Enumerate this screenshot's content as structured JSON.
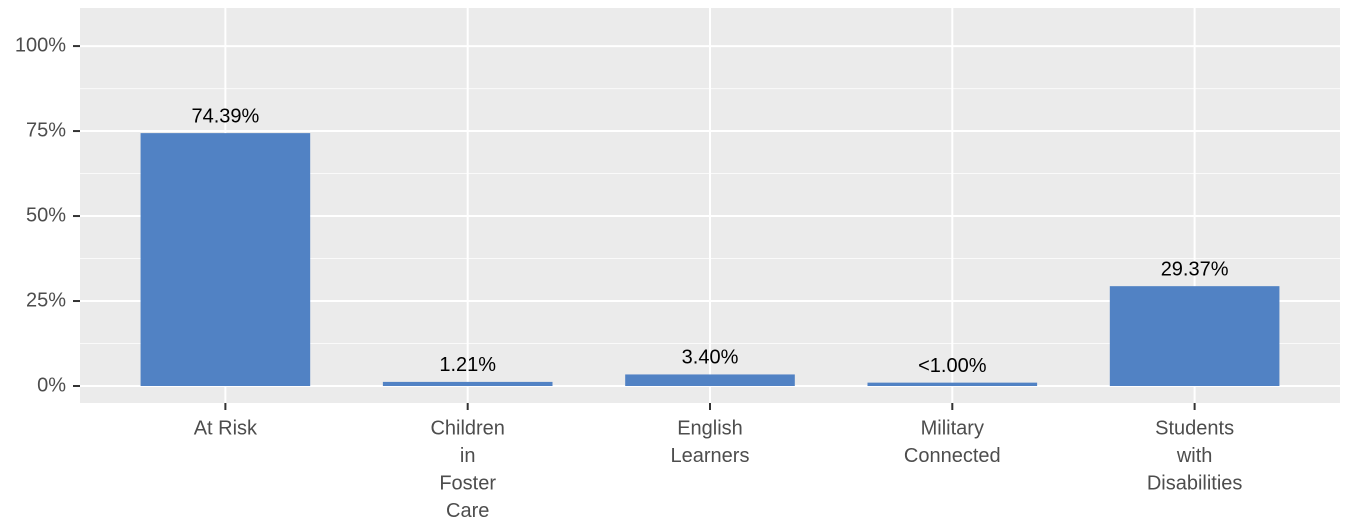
{
  "chart_data": {
    "type": "bar",
    "categories": [
      [
        "At Risk"
      ],
      [
        "Children",
        "in",
        "Foster",
        "Care"
      ],
      [
        "English",
        "Learners"
      ],
      [
        "Military",
        "Connected"
      ],
      [
        "Students",
        "with",
        "Disabilities"
      ]
    ],
    "values": [
      74.39,
      1.21,
      3.4,
      0.99,
      29.37
    ],
    "value_labels": [
      "74.39%",
      "1.21%",
      "3.40%",
      "<1.00%",
      "29.37%"
    ],
    "color": "#5182c4",
    "ylim": [
      -5,
      111.2
    ],
    "yticks": [
      {
        "value": 0,
        "label": "0%"
      },
      {
        "value": 25,
        "label": "25%"
      },
      {
        "value": 50,
        "label": "50%"
      },
      {
        "value": 75,
        "label": "75%"
      },
      {
        "value": 100,
        "label": "100%"
      }
    ],
    "grid": true
  }
}
